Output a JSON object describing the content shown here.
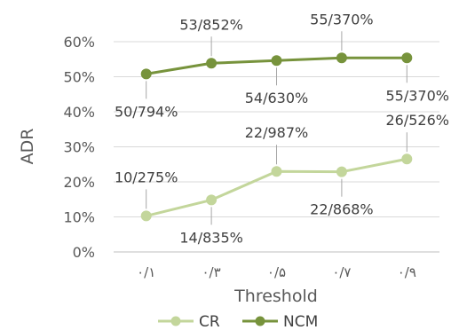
{
  "chart_data": {
    "type": "line",
    "xlabel": "Threshold",
    "ylabel": "ADR",
    "ylim": [
      0,
      0.6
    ],
    "y_ticks": [
      "0%",
      "10%",
      "20%",
      "30%",
      "40%",
      "50%",
      "60%"
    ],
    "categories": [
      "۰/۱",
      "۰/۳",
      "۰/۵",
      "۰/۷",
      "۰/۹"
    ],
    "grid": true,
    "legend_position": "bottom",
    "series": [
      {
        "name": "CR",
        "color": "#c3d69b",
        "values": [
          0.10275,
          0.14835,
          0.22987,
          0.22868,
          0.26526
        ],
        "labels": [
          "10/275%",
          "14/835%",
          "22/987%",
          "22/868%",
          "26/526%"
        ],
        "label_positions": [
          "above",
          "below",
          "above",
          "below",
          "above"
        ]
      },
      {
        "name": "NCM",
        "color": "#77933c",
        "values": [
          0.50794,
          0.53852,
          0.5463,
          0.5537,
          0.5537
        ],
        "labels": [
          "50/794%",
          "53/852%",
          "54/630%",
          "55/370%",
          "55/370%"
        ],
        "label_positions": [
          "below",
          "above",
          "below",
          "above",
          "below"
        ]
      }
    ]
  }
}
